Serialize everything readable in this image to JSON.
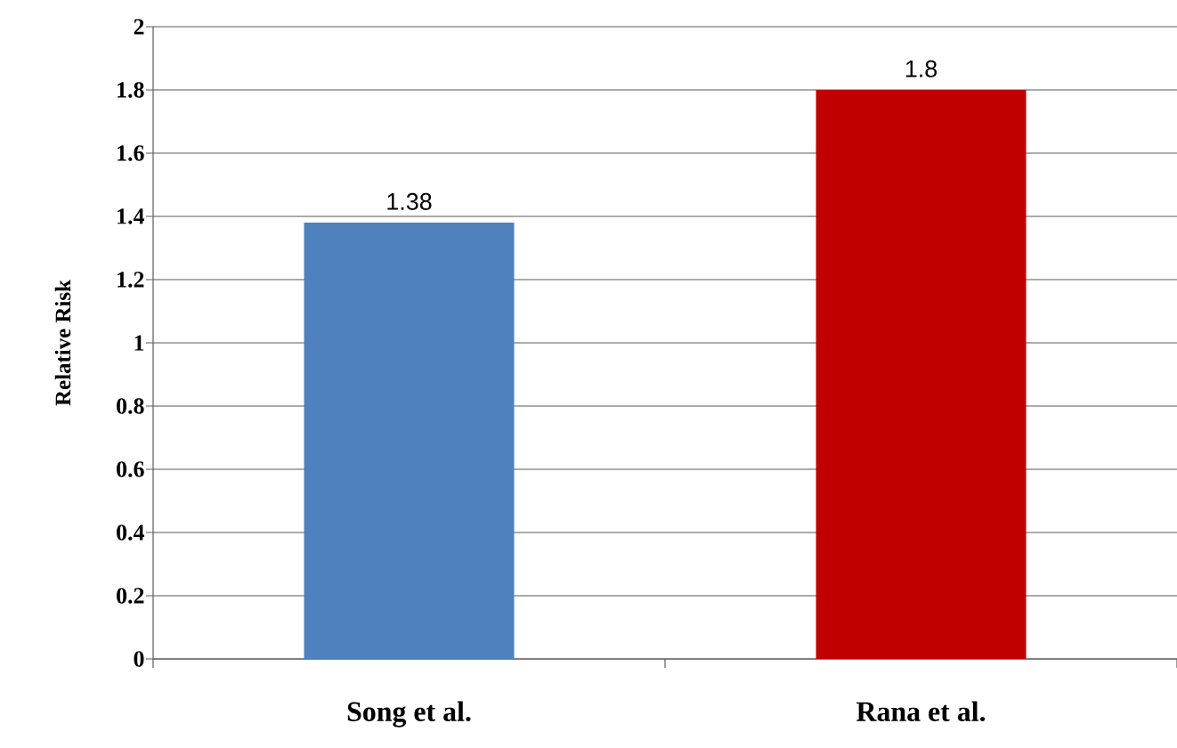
{
  "chart_data": {
    "type": "bar",
    "ylabel": "Relative Risk",
    "categories": [
      "Song et al.",
      "Rana et al."
    ],
    "values": [
      1.38,
      1.8
    ],
    "colors": [
      "#4f81bd",
      "#c00000"
    ],
    "ylim": [
      0,
      2
    ],
    "yticks": [
      0,
      0.2,
      0.4,
      0.6,
      0.8,
      1,
      1.2,
      1.4,
      1.6,
      1.8,
      2
    ],
    "grid": "y",
    "data_labels": true
  }
}
